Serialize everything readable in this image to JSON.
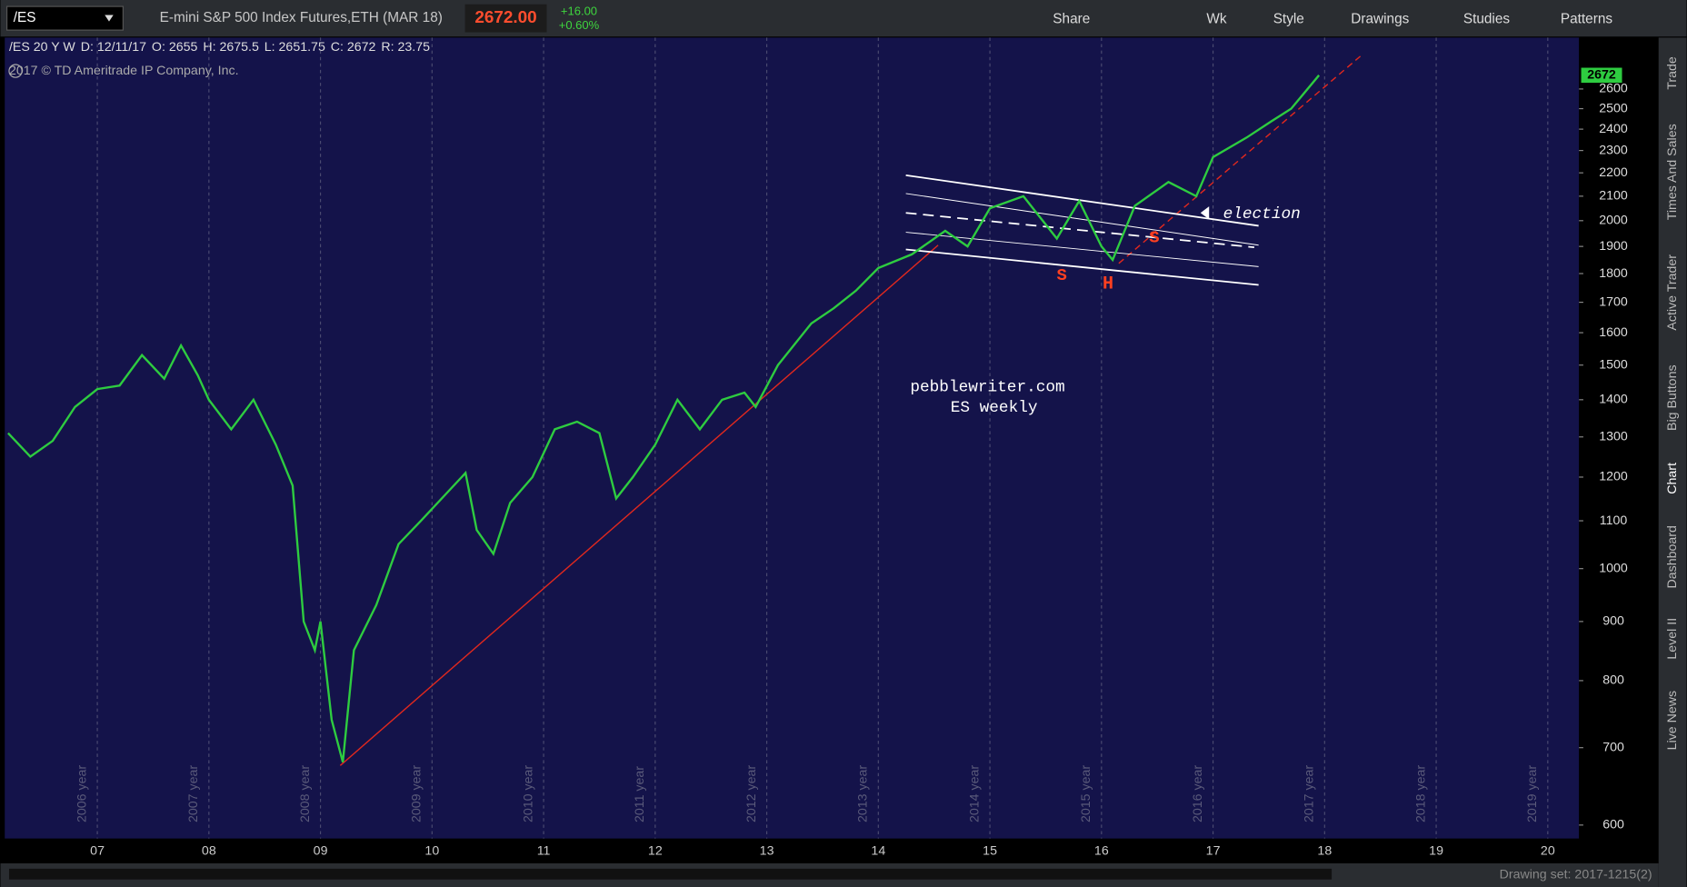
{
  "header": {
    "symbol": "/ES",
    "description": "E-mini S&P 500 Index Futures,ETH (MAR 18)",
    "price": "2672.00",
    "change": "+16.00",
    "change_pct": "+0.60%",
    "buttons": [
      "Share",
      "Wk",
      "Style",
      "Drawings",
      "Studies",
      "Patterns"
    ]
  },
  "info_bar": [
    "/ES 20 Y W",
    "D: 12/11/17",
    "O: 2655",
    "H: 2675.5",
    "L: 2651.75",
    "C: 2672",
    "R: 23.75"
  ],
  "copyright": "2017 © TD Ameritrade IP Company, Inc.",
  "sidebar": [
    "Trade",
    "Times And Sales",
    "Active Trader",
    "Big Buttons",
    "Chart",
    "Dashboard",
    "Level II",
    "Live News"
  ],
  "status": "Drawing set: 2017-1215(2)",
  "chart_data": {
    "type": "line",
    "log_y": true,
    "grid": "x",
    "color": "#2ecc40",
    "x": [
      2006.2,
      2006.4,
      2006.6,
      2006.8,
      2007.0,
      2007.2,
      2007.4,
      2007.6,
      2007.75,
      2007.9,
      2008.0,
      2008.2,
      2008.4,
      2008.6,
      2008.75,
      2008.85,
      2008.95,
      2009.0,
      2009.1,
      2009.2,
      2009.3,
      2009.5,
      2009.7,
      2009.9,
      2010.3,
      2010.4,
      2010.55,
      2010.7,
      2010.9,
      2011.1,
      2011.3,
      2011.5,
      2011.65,
      2011.8,
      2012.0,
      2012.2,
      2012.4,
      2012.6,
      2012.8,
      2012.9,
      2013.1,
      2013.4,
      2013.6,
      2013.8,
      2014.0,
      2014.3,
      2014.6,
      2014.8,
      2015.0,
      2015.3,
      2015.6,
      2015.8,
      2016.0,
      2016.1,
      2016.3,
      2016.6,
      2016.85,
      2017.0,
      2017.3,
      2017.5,
      2017.7,
      2017.95
    ],
    "values": [
      1310,
      1250,
      1290,
      1380,
      1430,
      1440,
      1530,
      1460,
      1560,
      1470,
      1400,
      1320,
      1400,
      1280,
      1180,
      900,
      850,
      900,
      740,
      680,
      850,
      930,
      1050,
      1100,
      1210,
      1080,
      1030,
      1140,
      1200,
      1320,
      1340,
      1310,
      1150,
      1200,
      1280,
      1400,
      1320,
      1400,
      1420,
      1380,
      1500,
      1630,
      1680,
      1740,
      1820,
      1870,
      1960,
      1900,
      2050,
      2100,
      1930,
      2080,
      1900,
      1850,
      2060,
      2160,
      2100,
      2270,
      2360,
      2430,
      2500,
      2672
    ],
    "last_label": "2672",
    "xlim": [
      2006.18,
      2020.28
    ],
    "xticks": [
      {
        "value": 2007,
        "label": "07"
      },
      {
        "value": 2008,
        "label": "08"
      },
      {
        "value": 2009,
        "label": "09"
      },
      {
        "value": 2010,
        "label": "10"
      },
      {
        "value": 2011,
        "label": "11"
      },
      {
        "value": 2012,
        "label": "12"
      },
      {
        "value": 2013,
        "label": "13"
      },
      {
        "value": 2014,
        "label": "14"
      },
      {
        "value": 2015,
        "label": "15"
      },
      {
        "value": 2016,
        "label": "16"
      },
      {
        "value": 2017,
        "label": "17"
      },
      {
        "value": 2018,
        "label": "18"
      },
      {
        "value": 2019,
        "label": "19"
      },
      {
        "value": 2020,
        "label": "20"
      }
    ],
    "year_labels": [
      "2006 year",
      "2007 year",
      "2008 year",
      "2009 year",
      "2010 year",
      "2011 year",
      "2012 year",
      "2013 year",
      "2014 year",
      "2015 year",
      "2016 year",
      "2017 year",
      "2018 year",
      "2019 year"
    ],
    "ylim": [
      584,
      2880
    ],
    "yticks": [
      600,
      700,
      800,
      900,
      1000,
      1100,
      1200,
      1300,
      1400,
      1500,
      1600,
      1700,
      1800,
      1900,
      2000,
      2100,
      2200,
      2300,
      2400,
      2500,
      2600
    ],
    "annotations": [
      "pebblewriter.com",
      "ES weekly",
      "election",
      "S",
      "H",
      "S"
    ]
  }
}
